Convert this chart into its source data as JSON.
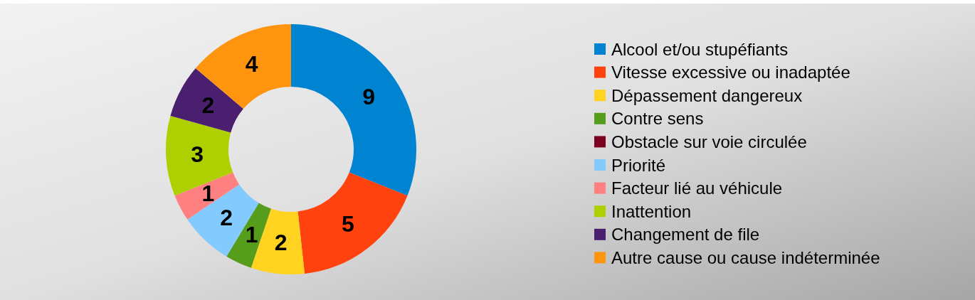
{
  "chart_data": {
    "type": "donut",
    "categories": [
      "Alcool et/ou stupéfiants",
      "Vitesse excessive ou inadaptée",
      "Dépassement dangereux",
      "Contre sens",
      "Obstacle sur voie circulée",
      "Priorité",
      "Facteur lié au véhicule",
      "Inattention",
      "Changement de file",
      "Autre cause ou cause indéterminée"
    ],
    "values": [
      9,
      5,
      2,
      1,
      0,
      2,
      1,
      3,
      2,
      4
    ],
    "value_labels": [
      "9",
      "5",
      "2",
      "1",
      null,
      "2",
      "1",
      "3",
      "2",
      "4"
    ],
    "colors": [
      "#0084d1",
      "#ff420e",
      "#ffd320",
      "#579d1c",
      "#7e0021",
      "#83caff",
      "#ff8080",
      "#aecf00",
      "#4b1f6f",
      "#ff950e"
    ],
    "legend": "right"
  }
}
